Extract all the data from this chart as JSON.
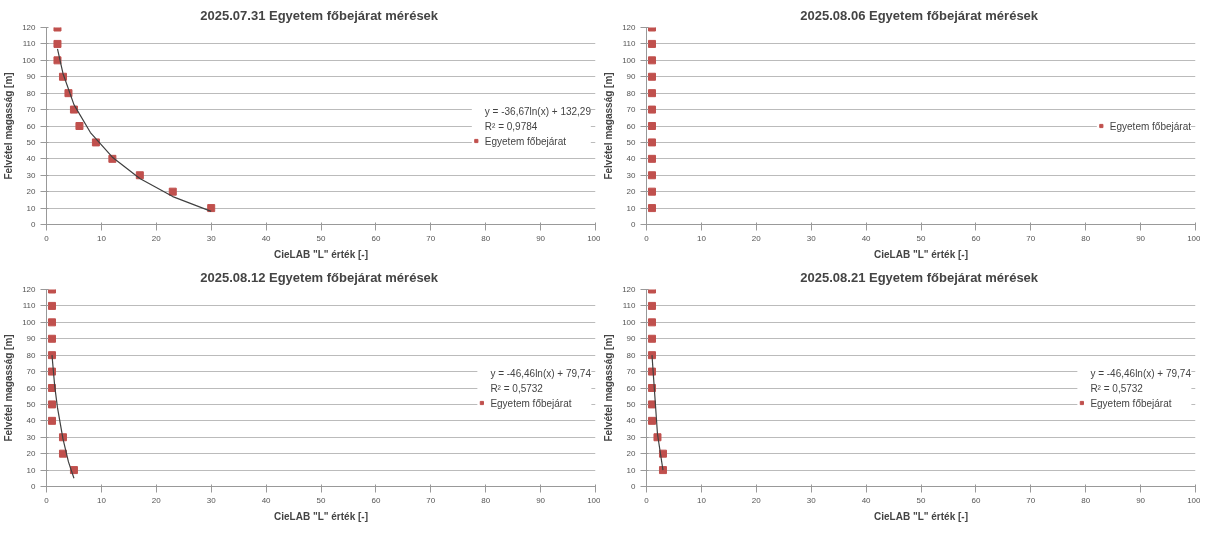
{
  "chart_data": [
    {
      "type": "scatter",
      "title": "2025.07.31  Egyetem főbejárat mérések",
      "xlabel": "CieLAB \"L\" érték [-]",
      "ylabel": "Felvétel magasság [m]",
      "xlim": [
        0,
        100
      ],
      "ylim": [
        0,
        120
      ],
      "xticks": [
        0,
        10,
        20,
        30,
        40,
        50,
        60,
        70,
        80,
        90,
        100
      ],
      "yticks": [
        0,
        10,
        20,
        30,
        40,
        50,
        60,
        70,
        80,
        90,
        100,
        110,
        120
      ],
      "grid": "y",
      "legend": "right",
      "marker": "square",
      "annotations": [
        "y = -36,67ln(x) + 132,29",
        "R² = 0,9784"
      ],
      "series": [
        {
          "name": "Egyetem főbejárat",
          "color": "#c0504d",
          "x": [
            30,
            23,
            17,
            12,
            9,
            6,
            5,
            4,
            3,
            2,
            2,
            2
          ],
          "values": [
            10,
            20,
            30,
            40,
            50,
            60,
            70,
            80,
            90,
            100,
            110,
            120
          ]
        },
        {
          "type": "line",
          "marker": "none",
          "color": "#404040",
          "x": [
            2,
            3,
            5,
            8,
            12,
            17,
            23,
            30
          ],
          "values": [
            107,
            92,
            73,
            56,
            41,
            28,
            17,
            8
          ]
        }
      ]
    },
    {
      "type": "scatter",
      "title": "2025.08.06  Egyetem főbejárat mérések",
      "xlabel": "CieLAB \"L\" érték [-]",
      "ylabel": "Felvétel magasság [m]",
      "xlim": [
        0,
        100
      ],
      "ylim": [
        0,
        120
      ],
      "xticks": [
        0,
        10,
        20,
        30,
        40,
        50,
        60,
        70,
        80,
        90,
        100
      ],
      "yticks": [
        0,
        10,
        20,
        30,
        40,
        50,
        60,
        70,
        80,
        90,
        100,
        110,
        120
      ],
      "grid": "y",
      "legend": "right",
      "marker": "square",
      "series": [
        {
          "name": "Egyetem főbejárat",
          "color": "#c0504d",
          "x": [
            1,
            1,
            1,
            1,
            1,
            1,
            1,
            1,
            1,
            1,
            1,
            1
          ],
          "values": [
            10,
            20,
            30,
            40,
            50,
            60,
            70,
            80,
            90,
            100,
            110,
            120
          ]
        }
      ]
    },
    {
      "type": "scatter",
      "title": "2025.08.12  Egyetem főbejárat mérések",
      "xlabel": "CieLAB \"L\" érték [-]",
      "ylabel": "Felvétel magasság [m]",
      "xlim": [
        0,
        100
      ],
      "ylim": [
        0,
        120
      ],
      "xticks": [
        0,
        10,
        20,
        30,
        40,
        50,
        60,
        70,
        80,
        90,
        100
      ],
      "yticks": [
        0,
        10,
        20,
        30,
        40,
        50,
        60,
        70,
        80,
        90,
        100,
        110,
        120
      ],
      "grid": "y",
      "legend": "right",
      "marker": "square",
      "annotations": [
        "y = -46,46ln(x) + 79,74",
        "R² = 0,5732"
      ],
      "series": [
        {
          "name": "Egyetem főbejárat",
          "color": "#c0504d",
          "x": [
            5,
            3,
            3,
            1,
            1,
            1,
            1,
            1,
            1,
            1,
            1,
            1
          ],
          "values": [
            10,
            20,
            30,
            40,
            50,
            60,
            70,
            80,
            90,
            100,
            110,
            120
          ]
        },
        {
          "type": "line",
          "marker": "none",
          "color": "#404040",
          "x": [
            1,
            1.5,
            2,
            3,
            4,
            5
          ],
          "values": [
            80,
            61,
            48,
            29,
            15,
            5
          ]
        }
      ]
    },
    {
      "type": "scatter",
      "title": "2025.08.21  Egyetem főbejárat mérések",
      "xlabel": "CieLAB \"L\" érték [-]",
      "ylabel": "Felvétel magasság [m]",
      "xlim": [
        0,
        100
      ],
      "ylim": [
        0,
        120
      ],
      "xticks": [
        0,
        10,
        20,
        30,
        40,
        50,
        60,
        70,
        80,
        90,
        100
      ],
      "yticks": [
        0,
        10,
        20,
        30,
        40,
        50,
        60,
        70,
        80,
        90,
        100,
        110,
        120
      ],
      "grid": "y",
      "legend": "right",
      "marker": "square",
      "annotations": [
        "y = -46,46ln(x) + 79,74",
        "R² = 0,5732"
      ],
      "series": [
        {
          "name": "Egyetem főbejárat",
          "color": "#c0504d",
          "x": [
            3,
            3,
            2,
            1,
            1,
            1,
            1,
            1,
            1,
            1,
            1,
            1
          ],
          "values": [
            10,
            20,
            30,
            40,
            50,
            60,
            70,
            80,
            90,
            100,
            110,
            120
          ]
        },
        {
          "type": "line",
          "marker": "none",
          "color": "#404040",
          "x": [
            1,
            2,
            3
          ],
          "values": [
            80,
            32,
            10
          ]
        }
      ]
    }
  ]
}
